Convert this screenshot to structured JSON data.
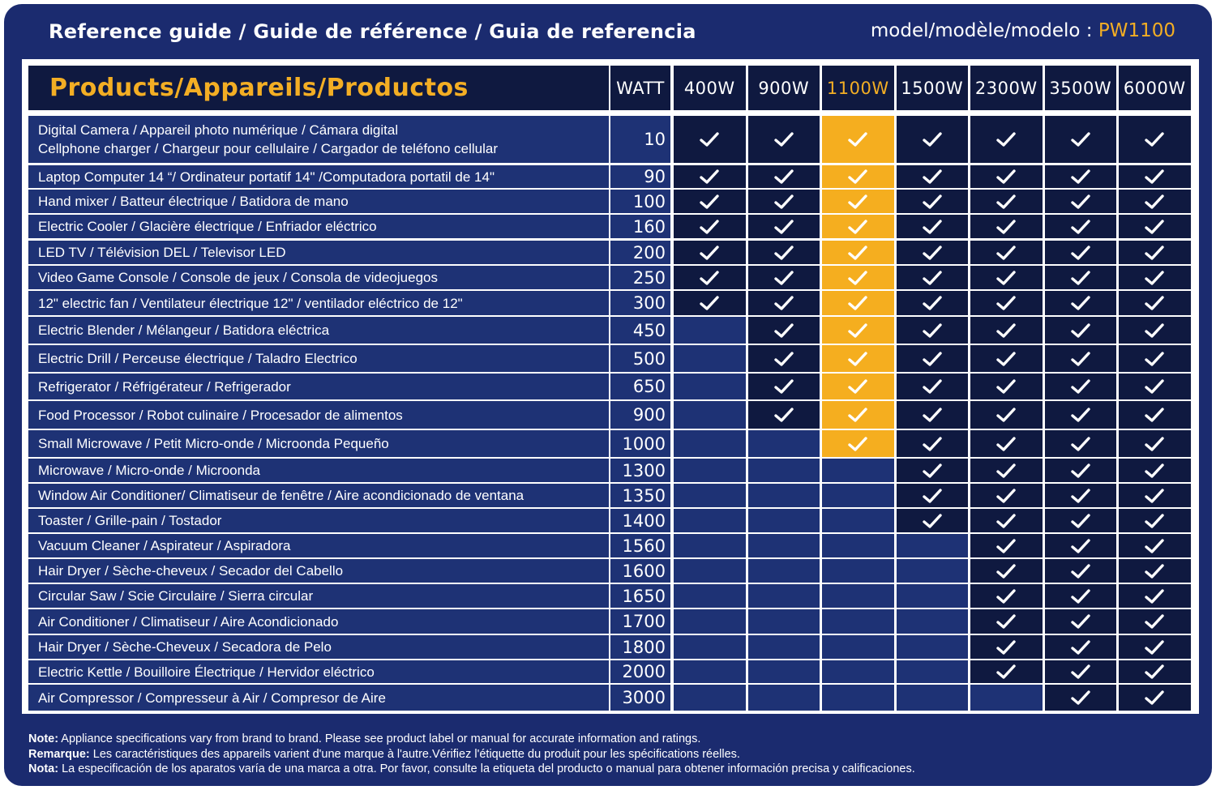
{
  "header": {
    "title": "Reference guide / Guide de référence / Guia de referencia",
    "model_label": "model/modèle/modelo : ",
    "model_value": "PW1100"
  },
  "table": {
    "products_label": "Products/Appareils/Productos",
    "watt_label": "WATT",
    "columns": [
      "400W",
      "900W",
      "1100W",
      "1500W",
      "2300W",
      "3500W",
      "6000W"
    ],
    "highlight_column": 2,
    "check_symbol": "check-icon",
    "colors": {
      "navy": "#1b2b6f",
      "dark": "#0f1940",
      "row": "#1e3275",
      "accent": "#f3ae24"
    },
    "rows": [
      {
        "name": "Digital Camera / Appareil photo numérique / Cámara digital",
        "name2": "Cellphone charger  / Chargeur pour cellulaire / Cargador de teléfono cellular",
        "watt": "10",
        "supported": [
          true,
          true,
          true,
          true,
          true,
          true,
          true
        ]
      },
      {
        "name": "Laptop Computer 14 “/ Ordinateur portatif 14\" /Computadora portatil de 14\"",
        "watt": "90",
        "supported": [
          true,
          true,
          true,
          true,
          true,
          true,
          true
        ]
      },
      {
        "name": "Hand mixer / Batteur électrique / Batidora de mano",
        "watt": "100",
        "supported": [
          true,
          true,
          true,
          true,
          true,
          true,
          true
        ]
      },
      {
        "name": "Electric Cooler / Glacière électrique  / Enfriador eléctrico",
        "watt": "160",
        "supported": [
          true,
          true,
          true,
          true,
          true,
          true,
          true
        ]
      },
      {
        "name": "LED TV / Télévision DEL / Televisor LED",
        "watt": "200",
        "supported": [
          true,
          true,
          true,
          true,
          true,
          true,
          true
        ]
      },
      {
        "name": "Video Game Console / Console de jeux / Consola de videojuegos",
        "watt": "250",
        "supported": [
          true,
          true,
          true,
          true,
          true,
          true,
          true
        ]
      },
      {
        "name": "12\" electric fan / Ventilateur électrique 12\" / ventilador eléctrico de 12\"",
        "watt": "300",
        "supported": [
          true,
          true,
          true,
          true,
          true,
          true,
          true
        ]
      },
      {
        "name": "Electric Blender /  Mélangeur / Batidora eléctrica",
        "watt": "450",
        "supported": [
          false,
          true,
          true,
          true,
          true,
          true,
          true
        ]
      },
      {
        "name": "Electric Drill / Perceuse électrique / Taladro Electrico",
        "watt": "500",
        "supported": [
          false,
          true,
          true,
          true,
          true,
          true,
          true
        ]
      },
      {
        "name": "Refrigerator / Réfrigérateur / Refrigerador",
        "watt": "650",
        "supported": [
          false,
          true,
          true,
          true,
          true,
          true,
          true
        ]
      },
      {
        "name": "Food Processor / Robot culinaire / Procesador de alimentos",
        "watt": "900",
        "supported": [
          false,
          true,
          true,
          true,
          true,
          true,
          true
        ]
      },
      {
        "name": "Small Microwave / Petit Micro-onde / Microonda Pequeño",
        "watt": "1000",
        "supported": [
          false,
          false,
          true,
          true,
          true,
          true,
          true
        ]
      },
      {
        "name": "Microwave / Micro-onde / Microonda",
        "watt": "1300",
        "supported": [
          false,
          false,
          false,
          true,
          true,
          true,
          true
        ]
      },
      {
        "name": "Window Air Conditioner/ Climatiseur de fenêtre / Aire acondicionado de ventana",
        "watt": "1350",
        "supported": [
          false,
          false,
          false,
          true,
          true,
          true,
          true
        ]
      },
      {
        "name": "Toaster / Grille-pain / Tostador",
        "watt": "1400",
        "supported": [
          false,
          false,
          false,
          true,
          true,
          true,
          true
        ]
      },
      {
        "name": "Vacuum Cleaner / Aspirateur / Aspiradora",
        "watt": "1560",
        "supported": [
          false,
          false,
          false,
          false,
          true,
          true,
          true
        ]
      },
      {
        "name": "Hair Dryer / Sèche-cheveux / Secador del Cabello",
        "watt": "1600",
        "supported": [
          false,
          false,
          false,
          false,
          true,
          true,
          true
        ]
      },
      {
        "name": "Circular Saw / Scie Circulaire / Sierra circular",
        "watt": "1650",
        "supported": [
          false,
          false,
          false,
          false,
          true,
          true,
          true
        ]
      },
      {
        "name": "Air Conditioner / Climatiseur / Aire Acondicionado",
        "watt": "1700",
        "supported": [
          false,
          false,
          false,
          false,
          true,
          true,
          true
        ]
      },
      {
        "name": "Hair Dryer / Sèche-Cheveux / Secadora de Pelo",
        "watt": "1800",
        "supported": [
          false,
          false,
          false,
          false,
          true,
          true,
          true
        ]
      },
      {
        "name": "Electric Kettle / Bouilloire Électrique / Hervidor eléctrico",
        "watt": "2000",
        "supported": [
          false,
          false,
          false,
          false,
          true,
          true,
          true
        ]
      },
      {
        "name": "Air Compressor / Compresseur à Air / Compresor de Aire",
        "watt": "3000",
        "supported": [
          false,
          false,
          false,
          false,
          false,
          true,
          true
        ]
      }
    ]
  },
  "notes": [
    {
      "label": "Note:",
      "text": " Appliance specifications vary from brand to brand.  Please see product label or manual for accurate information and ratings."
    },
    {
      "label": "Remarque:",
      "text": " Les caractéristiques des appareils varient d'une marque à l'autre.Vérifiez l'étiquette du produit pour les spécifications réelles."
    },
    {
      "label": "Nota:",
      "text": " La especificación de los aparatos varía de una marca a otra. Por favor, consulte la etiqueta del producto o manual para obtener información precisa y calificaciones."
    }
  ]
}
